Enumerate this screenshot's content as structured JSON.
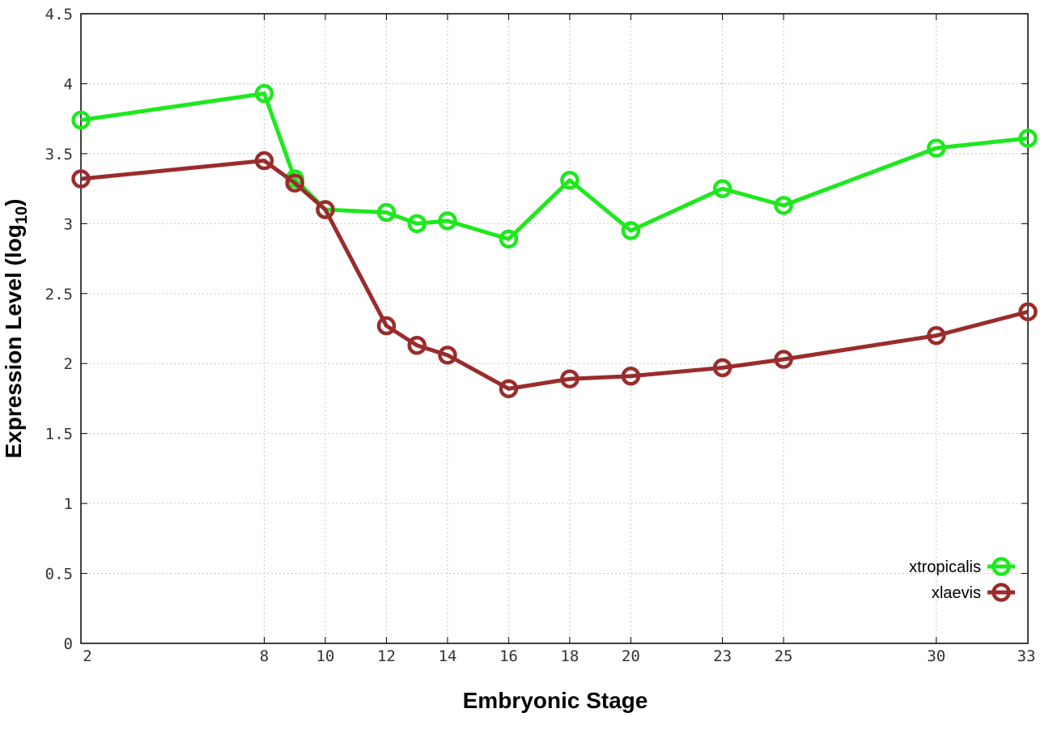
{
  "chart_data": {
    "type": "line",
    "title": "",
    "xlabel": "Embryonic Stage",
    "ylabel": "Expression Level (log",
    "ylabel_subscript": "10",
    "ylabel_suffix": ")",
    "xlim": [
      2,
      33
    ],
    "ylim": [
      0,
      4.5
    ],
    "xticks": [
      2,
      8,
      10,
      12,
      14,
      16,
      18,
      20,
      23,
      25,
      30,
      33
    ],
    "xtick_labels": [
      "2",
      "8",
      "10",
      "12",
      "14",
      "16",
      "18",
      "20",
      "23",
      "25",
      "30",
      "33"
    ],
    "yticks": [
      0,
      0.5,
      1,
      1.5,
      2,
      2.5,
      3,
      3.5,
      4,
      4.5
    ],
    "ytick_labels": [
      "0",
      "0.5",
      "1",
      "1.5",
      "2",
      "2.5",
      "3",
      "3.5",
      "4",
      "4.5"
    ],
    "grid": true,
    "legend_position": "bottom-right",
    "x": [
      2,
      8,
      9,
      10,
      12,
      13,
      14,
      16,
      18,
      20,
      23,
      25,
      30,
      33
    ],
    "series": [
      {
        "name": "xtropicalis",
        "color": "#1ee81e",
        "values": [
          3.74,
          3.93,
          3.32,
          3.1,
          3.08,
          3.0,
          3.02,
          2.89,
          3.31,
          2.95,
          3.25,
          3.13,
          3.54,
          3.61
        ]
      },
      {
        "name": "xlaevis",
        "color": "#9a2c2c",
        "values": [
          3.32,
          3.45,
          3.29,
          3.1,
          2.27,
          2.13,
          2.06,
          1.82,
          1.89,
          1.91,
          1.97,
          2.03,
          2.2,
          2.37
        ]
      }
    ]
  }
}
